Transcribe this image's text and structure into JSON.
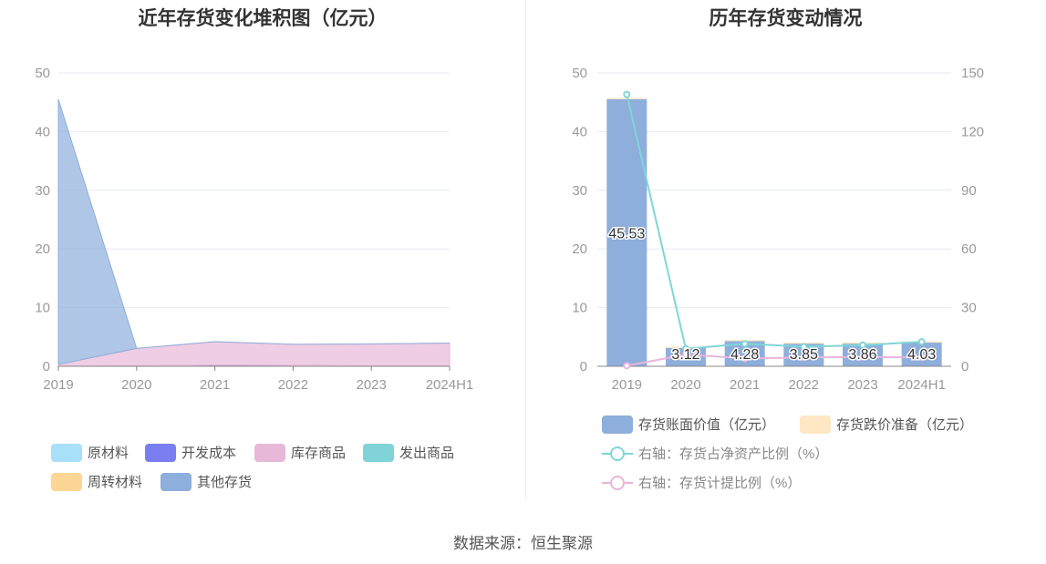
{
  "source": "数据来源：恒生聚源",
  "chart_data": [
    {
      "type": "area",
      "title": "近年存货变化堆积图（亿元）",
      "categories": [
        "2019",
        "2020",
        "2021",
        "2022",
        "2023",
        "2024H1"
      ],
      "ylim": [
        0,
        50
      ],
      "yticks": [
        0,
        10,
        20,
        30,
        40,
        50
      ],
      "stacked": true,
      "legend_position": "bottom-left",
      "series": [
        {
          "name": "原材料",
          "color": "#a8e0fa",
          "values": [
            0,
            0,
            0,
            0,
            0,
            0
          ]
        },
        {
          "name": "开发成本",
          "color": "#7a7ef0",
          "values": [
            0,
            0.05,
            0.2,
            0.15,
            0.05,
            0.05
          ]
        },
        {
          "name": "库存商品",
          "color": "#e8b8d9",
          "values": [
            0.3,
            3.0,
            4.0,
            3.6,
            3.75,
            3.9
          ]
        },
        {
          "name": "发出商品",
          "color": "#80d4d8",
          "values": [
            0,
            0,
            0,
            0,
            0,
            0
          ]
        },
        {
          "name": "周转材料",
          "color": "#fdd696",
          "values": [
            0,
            0,
            0,
            0,
            0,
            0
          ]
        },
        {
          "name": "其他存货",
          "color": "#8eaedb",
          "values": [
            45.2,
            0,
            0,
            0,
            0,
            0
          ]
        }
      ]
    },
    {
      "type": "bar+line",
      "title": "历年存货变动情况",
      "categories": [
        "2019",
        "2020",
        "2021",
        "2022",
        "2023",
        "2024H1"
      ],
      "ylim": [
        0,
        50
      ],
      "yticks": [
        0,
        10,
        20,
        30,
        40,
        50
      ],
      "y2lim": [
        0,
        150
      ],
      "y2ticks": [
        0,
        30,
        60,
        90,
        120,
        150
      ],
      "legend_position": "bottom",
      "bars": [
        {
          "name": "存货账面价值（亿元）",
          "color": "#8eaedb",
          "values": [
            45.53,
            3.12,
            4.28,
            3.85,
            3.86,
            4.03
          ],
          "labels": [
            "45.53",
            "3.12",
            "4.28",
            "3.85",
            "3.86",
            "4.03"
          ]
        },
        {
          "name": "存货跌价准备（亿元）",
          "color": "#fde7c4",
          "values": [
            0.2,
            0.2,
            0.2,
            0.2,
            0.2,
            0.2
          ]
        }
      ],
      "lines": [
        {
          "name": "右轴：存货占净资产比例（%）",
          "color": "#7fd6d8",
          "values": [
            139,
            9,
            11.5,
            10,
            10.8,
            12.5
          ]
        },
        {
          "name": "右轴：存货计提比例（%）",
          "color": "#e9b5dc",
          "values": [
            0.3,
            6,
            4,
            4.5,
            4.8,
            4.5
          ]
        }
      ]
    }
  ]
}
